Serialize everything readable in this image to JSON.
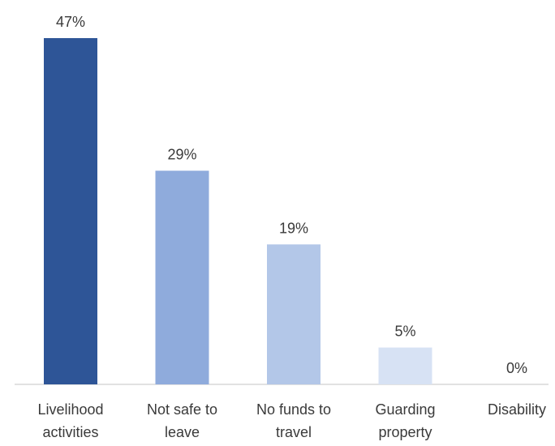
{
  "chart_data": {
    "type": "bar",
    "categories": [
      [
        "Livelihood",
        "activities"
      ],
      [
        "Not safe to",
        "leave"
      ],
      [
        "No funds to",
        "travel"
      ],
      [
        "Guarding",
        "property"
      ],
      [
        "Disability"
      ]
    ],
    "values": [
      47,
      29,
      19,
      5,
      0
    ],
    "value_labels": [
      "47%",
      "29%",
      "19%",
      "5%",
      "0%"
    ],
    "ylim": [
      0,
      47
    ],
    "grid": false,
    "legend": "none",
    "colors": [
      "#2e5597",
      "#8fabdc",
      "#b3c7e8",
      "#d7e2f4",
      "#e8eef8"
    ]
  }
}
